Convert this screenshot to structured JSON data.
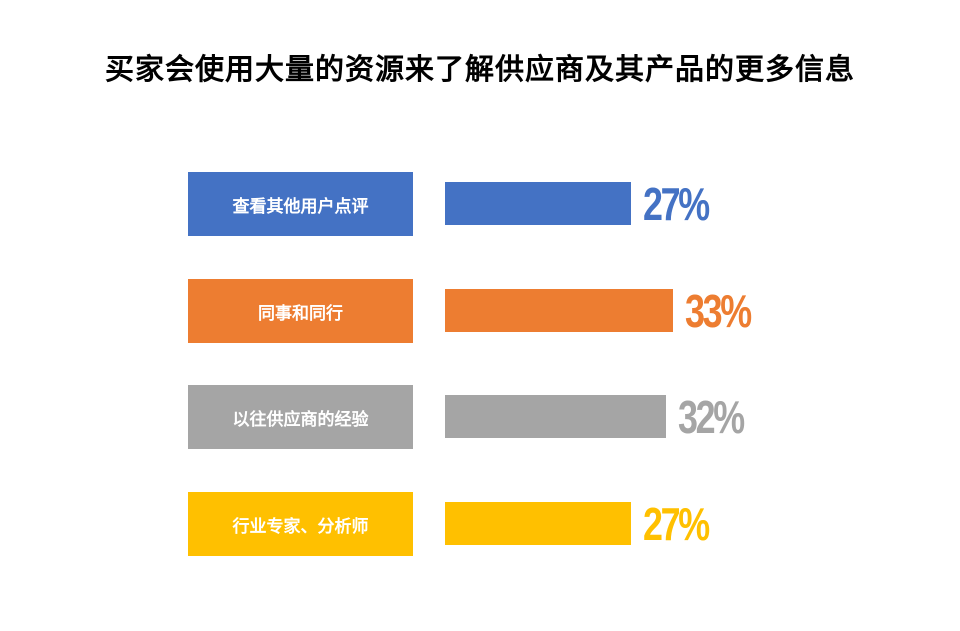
{
  "chart_data": {
    "type": "bar",
    "orientation": "horizontal",
    "title": "买家会使用大量的资源来了解供应商及其产品的更多信息",
    "categories": [
      "查看其他用户点评",
      "同事和同行",
      "以往供应商的经验",
      "行业专家、分析师"
    ],
    "values": [
      27,
      33,
      32,
      27
    ],
    "value_labels": [
      "27%",
      "33%",
      "32%",
      "27%"
    ],
    "colors": [
      "#4472C4",
      "#ED7D31",
      "#A5A5A5",
      "#FFC000"
    ],
    "xlim": [
      0,
      100
    ],
    "unit": "%",
    "grid": false,
    "legend": "none"
  }
}
